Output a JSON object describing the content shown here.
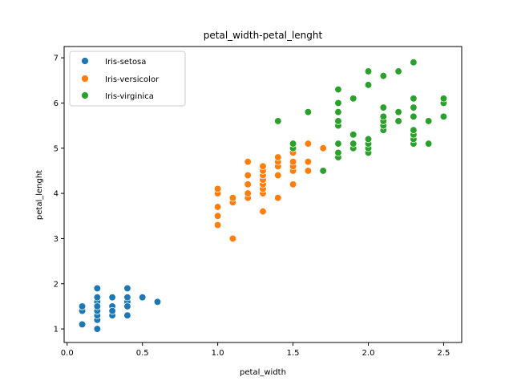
{
  "chart_data": {
    "type": "scatter",
    "title": "petal_width-petal_lenght",
    "xlabel": "petal_width",
    "ylabel": "petal_lenght",
    "xlim": [
      -0.02,
      2.62
    ],
    "ylim": [
      0.7,
      7.25
    ],
    "xticks": [
      0.0,
      0.5,
      1.0,
      1.5,
      2.0,
      2.5
    ],
    "xtick_labels": [
      "0.0",
      "0.5",
      "1.0",
      "1.5",
      "2.0",
      "2.5"
    ],
    "yticks": [
      1,
      2,
      3,
      4,
      5,
      6,
      7
    ],
    "ytick_labels": [
      "1",
      "2",
      "3",
      "4",
      "5",
      "6",
      "7"
    ],
    "grid": false,
    "legend_position": "top-left",
    "series": [
      {
        "name": "Iris-setosa",
        "color": "#1f77b4",
        "x": [
          0.1,
          0.1,
          0.1,
          0.1,
          0.2,
          0.2,
          0.2,
          0.2,
          0.2,
          0.2,
          0.2,
          0.2,
          0.2,
          0.2,
          0.3,
          0.3,
          0.3,
          0.3,
          0.3,
          0.4,
          0.4,
          0.4,
          0.4,
          0.4,
          0.4,
          0.5,
          0.6
        ],
        "y": [
          1.1,
          1.4,
          1.5,
          1.5,
          1.0,
          1.2,
          1.3,
          1.4,
          1.5,
          1.6,
          1.7,
          1.9,
          1.4,
          1.5,
          1.3,
          1.4,
          1.5,
          1.7,
          1.4,
          1.3,
          1.5,
          1.6,
          1.7,
          1.9,
          1.5,
          1.7,
          1.6
        ]
      },
      {
        "name": "Iris-versicolor",
        "color": "#ff7f0e",
        "x": [
          1.0,
          1.0,
          1.0,
          1.0,
          1.0,
          1.0,
          1.1,
          1.1,
          1.1,
          1.2,
          1.2,
          1.2,
          1.2,
          1.2,
          1.3,
          1.3,
          1.3,
          1.3,
          1.3,
          1.3,
          1.3,
          1.3,
          1.4,
          1.4,
          1.4,
          1.4,
          1.4,
          1.5,
          1.5,
          1.5,
          1.5,
          1.5,
          1.5,
          1.6,
          1.6,
          1.6,
          1.7
        ],
        "y": [
          3.3,
          3.5,
          3.7,
          4.0,
          4.1,
          3.3,
          3.0,
          3.8,
          3.9,
          3.9,
          4.0,
          4.2,
          4.4,
          4.7,
          3.6,
          4.0,
          4.1,
          4.2,
          4.3,
          4.4,
          4.5,
          4.6,
          3.9,
          4.4,
          4.6,
          4.7,
          4.8,
          4.2,
          4.5,
          4.6,
          4.7,
          4.9,
          5.0,
          4.5,
          4.7,
          5.1,
          5.0
        ]
      },
      {
        "name": "Iris-virginica",
        "color": "#2ca02c",
        "x": [
          1.4,
          1.5,
          1.5,
          1.6,
          1.7,
          1.8,
          1.8,
          1.8,
          1.8,
          1.8,
          1.8,
          1.8,
          1.8,
          1.9,
          1.9,
          1.9,
          1.9,
          2.0,
          2.0,
          2.0,
          2.0,
          2.0,
          2.0,
          2.1,
          2.1,
          2.1,
          2.1,
          2.1,
          2.1,
          2.2,
          2.2,
          2.2,
          2.3,
          2.3,
          2.3,
          2.3,
          2.3,
          2.3,
          2.3,
          2.3,
          2.4,
          2.4,
          2.5,
          2.5,
          2.5
        ],
        "y": [
          5.6,
          5.0,
          5.1,
          5.8,
          4.5,
          4.8,
          4.9,
          5.1,
          5.5,
          5.6,
          5.8,
          6.0,
          6.3,
          5.0,
          5.1,
          5.3,
          6.1,
          4.9,
          5.0,
          5.1,
          5.2,
          6.4,
          6.7,
          5.4,
          5.5,
          5.6,
          5.7,
          5.9,
          6.6,
          5.6,
          5.8,
          6.7,
          5.1,
          5.2,
          5.3,
          5.4,
          5.7,
          5.9,
          6.1,
          6.9,
          5.1,
          5.6,
          5.7,
          6.0,
          6.1
        ]
      }
    ]
  }
}
